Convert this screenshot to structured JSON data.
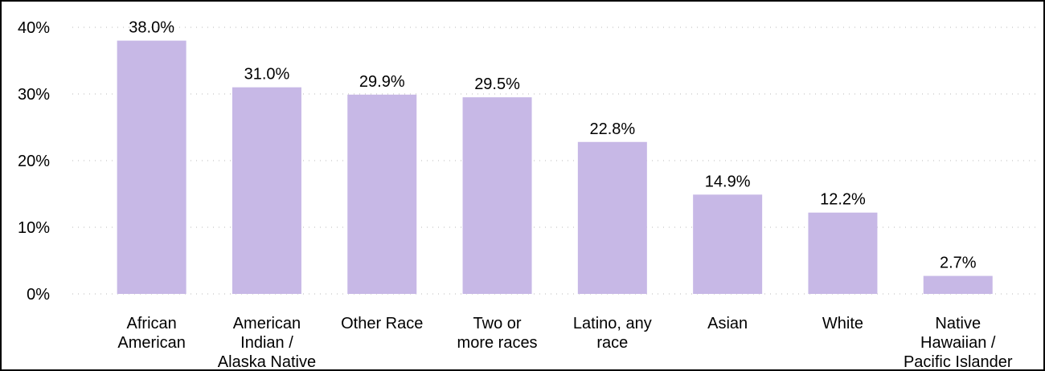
{
  "chart_data": {
    "type": "bar",
    "categories": [
      [
        "African",
        "American"
      ],
      [
        "American",
        "Indian /",
        "Alaska Native"
      ],
      [
        "Other Race"
      ],
      [
        "Two or",
        "more races"
      ],
      [
        "Latino, any",
        "race"
      ],
      [
        "Asian"
      ],
      [
        "White"
      ],
      [
        "Native",
        "Hawaiian /",
        "Pacific Islander"
      ]
    ],
    "values": [
      38.0,
      31.0,
      29.9,
      29.5,
      22.8,
      14.9,
      12.2,
      2.7
    ],
    "value_labels": [
      "38.0%",
      "31.0%",
      "29.9%",
      "29.5%",
      "22.8%",
      "14.9%",
      "12.2%",
      "2.7%"
    ],
    "ylim": [
      0,
      40
    ],
    "yticks": [
      0,
      10,
      20,
      30,
      40
    ],
    "ytick_labels": [
      "0%",
      "10%",
      "20%",
      "30%",
      "40%"
    ],
    "grid": true,
    "title": "",
    "xlabel": "",
    "ylabel": "",
    "colors": {
      "bar": "#c7b8e6",
      "grid": "#b8b8b8",
      "text": "#000000"
    }
  }
}
